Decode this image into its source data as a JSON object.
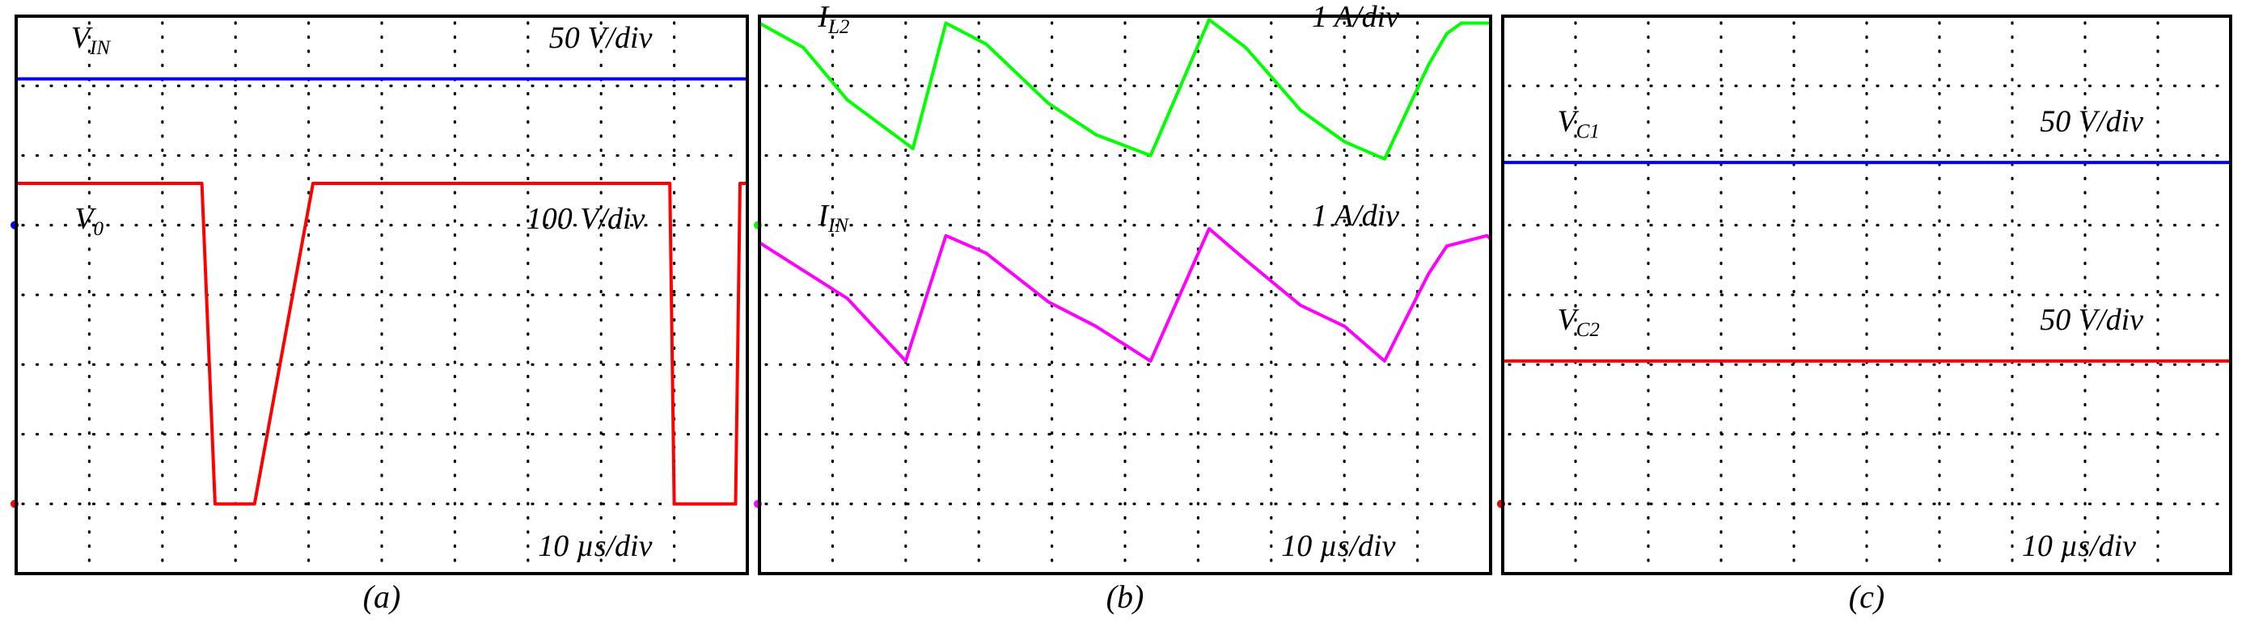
{
  "chart_data": [
    {
      "type": "line",
      "panel": "a",
      "caption": "(a)",
      "divisions": {
        "x": 10,
        "y": 8
      },
      "xlim": [
        0,
        10
      ],
      "ylim": [
        0,
        8
      ],
      "grid": true,
      "time_scale": "10 µs/div",
      "series": [
        {
          "name": "V",
          "name_sub": "IN",
          "scale": "50 V/div",
          "color": "#0000ff",
          "ground_div": 5,
          "x": [
            0,
            10
          ],
          "y": [
            7.1,
            7.1
          ],
          "label_at": [
            0.75,
            7.55
          ],
          "scale_at": [
            8.7,
            7.55
          ]
        },
        {
          "name": "V",
          "name_sub": "0",
          "scale": "100 V/div",
          "color": "#ff0000",
          "ground_div": 1,
          "x": [
            0,
            2.54,
            2.72,
            3.16,
            3.26,
            4.06,
            4.44,
            4.66,
            4.98,
            5.16,
            5.58,
            5.68,
            5.78,
            6.9,
            7.04,
            7.48,
            7.58,
            8.88,
            8.94,
            9.0,
            9.84,
            9.9,
            10.0
          ],
          "y": [
            5.6,
            5.6,
            1.0,
            1.0,
            1.0,
            5.6,
            5.6,
            5.6,
            5.6,
            5.6,
            5.6,
            5.6,
            5.6,
            5.6,
            5.6,
            5.6,
            5.6,
            5.6,
            5.6,
            1.0,
            1.0,
            5.6,
            5.6
          ],
          "label_at": [
            0.8,
            4.95
          ],
          "scale_at": [
            8.6,
            4.95
          ]
        }
      ]
    },
    {
      "type": "line",
      "panel": "b",
      "caption": "(b)",
      "divisions": {
        "x": 10,
        "y": 8
      },
      "xlim": [
        0,
        10
      ],
      "ylim": [
        0,
        8
      ],
      "grid": true,
      "time_scale": "10 µs/div",
      "series": [
        {
          "name": "I",
          "name_sub": "L2",
          "scale": "1 A/div",
          "color": "#00ff00",
          "ground_div": 5,
          "x": [
            0,
            0.6,
            1.2,
            2.1,
            2.55,
            3.1,
            3.95,
            4.6,
            5.35,
            6.15,
            6.65,
            7.4,
            8.0,
            8.55,
            9.15,
            9.4,
            9.6,
            9.95,
            10.0
          ],
          "y": [
            7.9,
            7.55,
            6.8,
            6.1,
            7.9,
            7.6,
            6.75,
            6.3,
            6.0,
            7.95,
            7.55,
            6.65,
            6.2,
            5.95,
            7.3,
            7.75,
            7.9,
            7.9,
            7.9
          ],
          "label_at": [
            0.8,
            7.85
          ],
          "scale_at": [
            8.75,
            7.85
          ]
        },
        {
          "name": "I",
          "name_sub": "IN",
          "scale": "1 A/div",
          "color": "#ff00ff",
          "ground_div": 1,
          "x": [
            0,
            0.6,
            1.2,
            2.0,
            2.55,
            3.1,
            3.95,
            4.6,
            5.35,
            6.15,
            6.65,
            7.4,
            8.0,
            8.55,
            9.15,
            9.4,
            9.95,
            10.0
          ],
          "y": [
            4.75,
            4.35,
            3.95,
            3.05,
            4.85,
            4.6,
            3.9,
            3.55,
            3.05,
            4.95,
            4.5,
            3.85,
            3.55,
            3.05,
            4.3,
            4.7,
            4.85,
            4.8
          ],
          "label_at": [
            0.8,
            5.0
          ],
          "scale_at": [
            8.75,
            5.0
          ]
        }
      ]
    },
    {
      "type": "line",
      "panel": "c",
      "caption": "(c)",
      "divisions": {
        "x": 10,
        "y": 8
      },
      "xlim": [
        0,
        10
      ],
      "ylim": [
        0,
        8
      ],
      "grid": true,
      "time_scale": "10 µs/div",
      "series": [
        {
          "name": "V",
          "name_sub": "C1",
          "scale": "50 V/div",
          "color": "#0000ff",
          "ground_div": 1,
          "x": [
            0,
            10
          ],
          "y": [
            5.9,
            5.9
          ],
          "label_at": [
            0.75,
            6.35
          ],
          "scale_at": [
            8.8,
            6.35
          ]
        },
        {
          "name": "V",
          "name_sub": "C2",
          "scale": "50 V/div",
          "color": "#ff0000",
          "ground_div": 1,
          "x": [
            0,
            10
          ],
          "y": [
            3.05,
            3.05
          ],
          "label_at": [
            0.75,
            3.5
          ],
          "scale_at": [
            8.8,
            3.5
          ]
        }
      ]
    }
  ]
}
